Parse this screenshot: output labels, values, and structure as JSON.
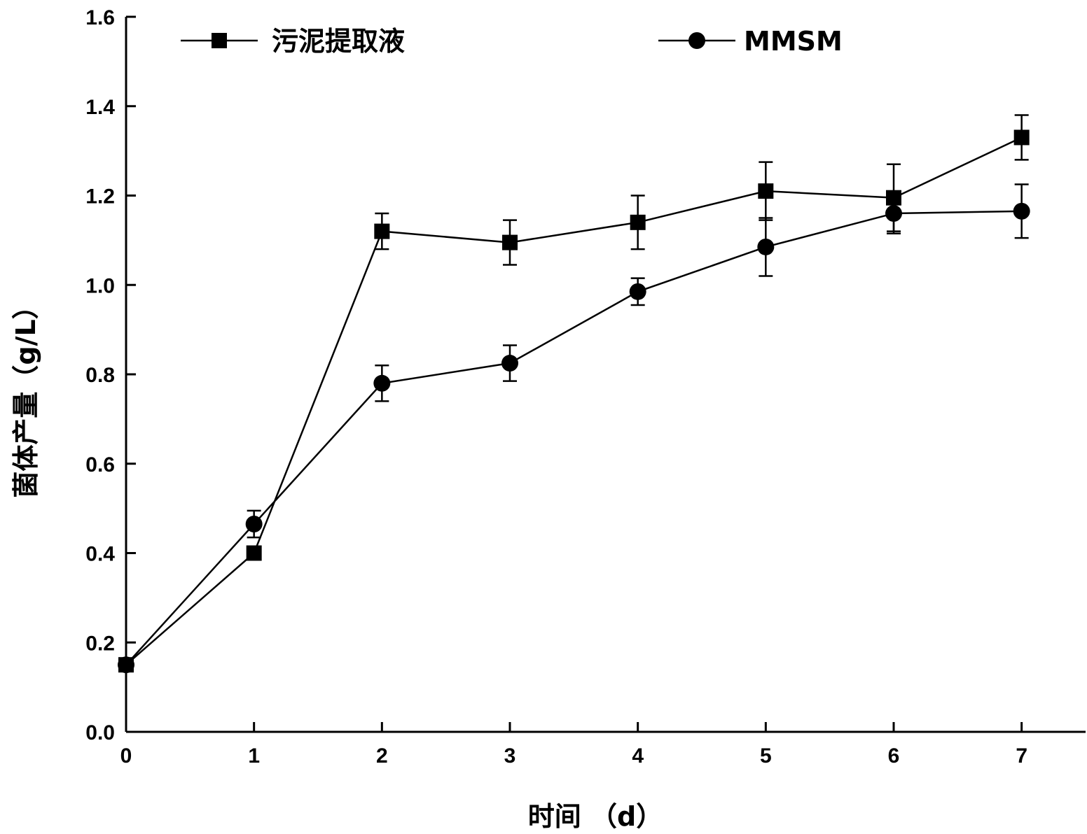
{
  "chart_data": {
    "type": "line",
    "x": [
      0,
      1,
      2,
      3,
      4,
      5,
      6,
      7
    ],
    "xlabel": "时间 （d）",
    "ylabel": "菌体产量（g/L）",
    "xlim": [
      0,
      7.5
    ],
    "ylim": [
      0,
      1.6
    ],
    "xticks": [
      "0",
      "1",
      "2",
      "3",
      "4",
      "5",
      "6",
      "7"
    ],
    "yticks": [
      "0.0",
      "0.2",
      "0.4",
      "0.6",
      "0.8",
      "1.0",
      "1.2",
      "1.4",
      "1.6"
    ],
    "legend_position": "top",
    "grid": false,
    "series": [
      {
        "name": "污泥提取液",
        "marker": "square",
        "values": [
          0.15,
          0.4,
          1.12,
          1.095,
          1.14,
          1.21,
          1.195,
          1.33
        ],
        "errors": [
          0.01,
          0.01,
          0.04,
          0.05,
          0.06,
          0.065,
          0.075,
          0.05
        ]
      },
      {
        "name": "MMSM",
        "marker": "circle",
        "values": [
          0.15,
          0.465,
          0.78,
          0.825,
          0.985,
          1.085,
          1.16,
          1.165
        ],
        "errors": [
          0.01,
          0.03,
          0.04,
          0.04,
          0.03,
          0.065,
          0.045,
          0.06
        ]
      }
    ],
    "colors": {
      "line": "#000000",
      "background": "#ffffff"
    }
  }
}
